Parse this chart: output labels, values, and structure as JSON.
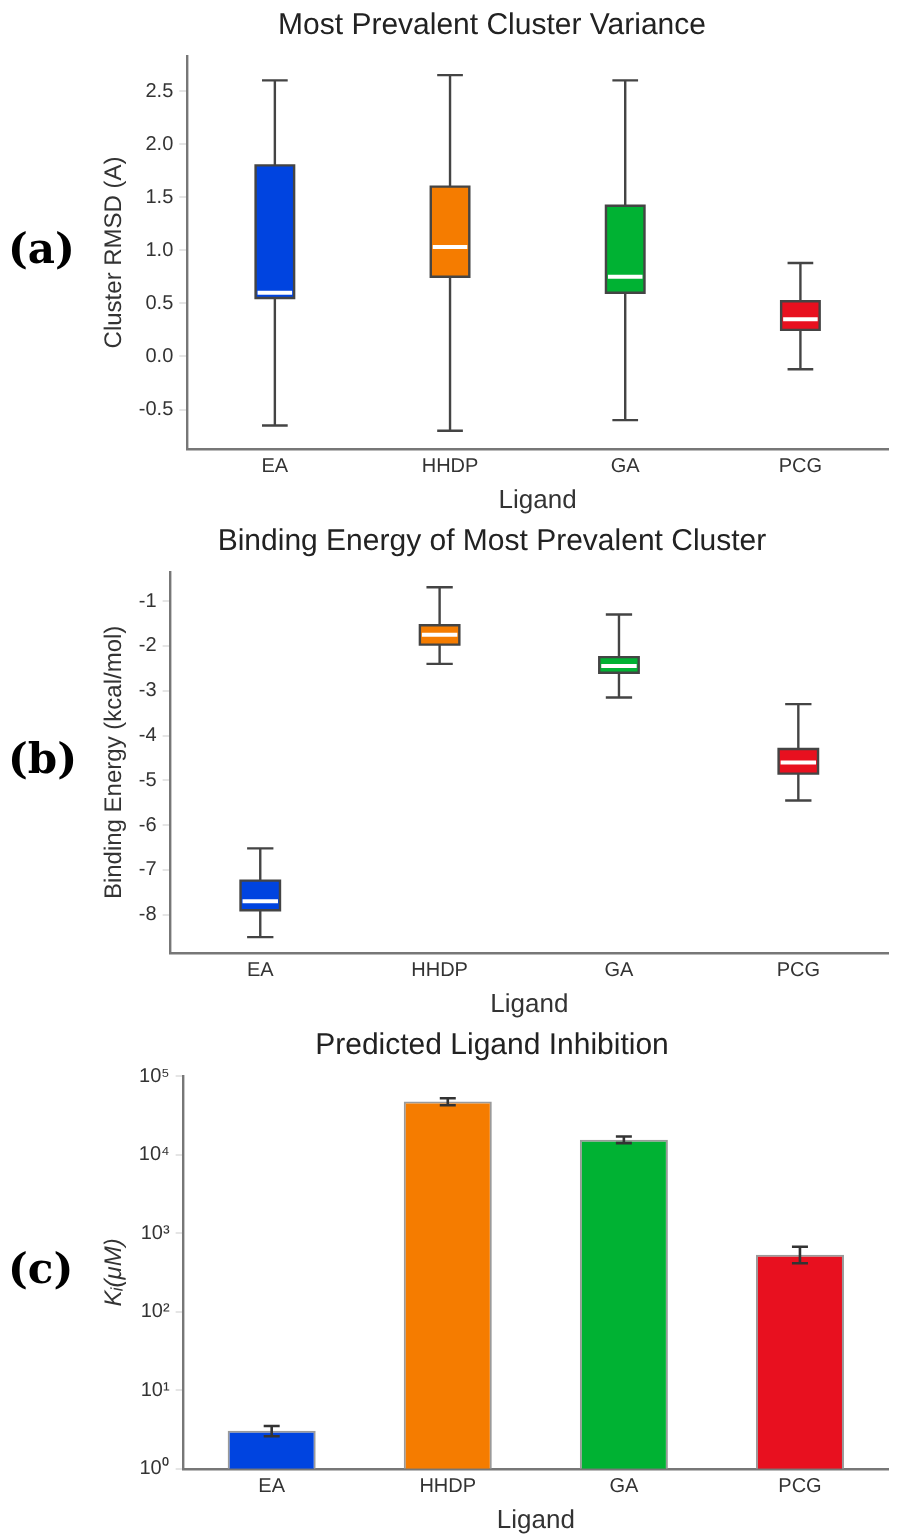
{
  "chart_data": [
    {
      "type": "box",
      "title": "Most Prevalent Cluster Variance",
      "xlabel": "Ligand",
      "ylabel": "Cluster RMSD (A)",
      "annotations": [
        "(a)"
      ],
      "categories": [
        "EA",
        "HHDP",
        "GA",
        "PCG"
      ],
      "colors": [
        "#0044e0",
        "#f57c00",
        "#00b233",
        "#e8101f"
      ],
      "boxes": [
        {
          "low": -0.65,
          "q1": 0.55,
          "median": 0.6,
          "q3": 1.8,
          "high": 2.6
        },
        {
          "low": -0.7,
          "q1": 0.75,
          "median": 1.03,
          "q3": 1.6,
          "high": 2.65
        },
        {
          "low": -0.6,
          "q1": 0.6,
          "median": 0.75,
          "q3": 1.42,
          "high": 2.6
        },
        {
          "low": -0.12,
          "q1": 0.25,
          "median": 0.35,
          "q3": 0.52,
          "high": 0.88
        }
      ],
      "ylim": [
        -0.87,
        2.83
      ],
      "yticks": [
        {
          "value": -0.5,
          "label": "-0.5"
        },
        {
          "value": 0,
          "label": "0.0"
        },
        {
          "value": 0.5,
          "label": "0.5"
        },
        {
          "value": 1,
          "label": "1.0"
        },
        {
          "value": 1.5,
          "label": "1.5"
        },
        {
          "value": 2,
          "label": "2.0"
        },
        {
          "value": 2.5,
          "label": "2.5"
        }
      ],
      "grid": false,
      "legend": false
    },
    {
      "type": "box",
      "title": "Binding Energy of Most Prevalent Cluster",
      "xlabel": "Ligand",
      "ylabel": "Binding Energy (kcal/mol)",
      "annotations": [
        "(b)"
      ],
      "categories": [
        "EA",
        "HHDP",
        "GA",
        "PCG"
      ],
      "colors": [
        "#0044e0",
        "#f57c00",
        "#00b233",
        "#e8101f"
      ],
      "boxes": [
        {
          "low": -8.5,
          "q1": -7.9,
          "median": -7.7,
          "q3": -7.24,
          "high": -6.52
        },
        {
          "low": -2.4,
          "q1": -1.97,
          "median": -1.75,
          "q3": -1.54,
          "high": -0.69
        },
        {
          "low": -3.15,
          "q1": -2.6,
          "median": -2.45,
          "q3": -2.25,
          "high": -1.3
        },
        {
          "low": -5.45,
          "q1": -4.85,
          "median": -4.6,
          "q3": -4.3,
          "high": -3.3
        }
      ],
      "ylim": [
        -8.85,
        -0.35
      ],
      "yticks": [
        -8,
        -7,
        -6,
        -5,
        -4,
        -3,
        -2,
        -1
      ],
      "grid": false,
      "legend": false
    },
    {
      "type": "bar",
      "title": "Predicted Ligand Inhibition",
      "xlabel": "Ligand",
      "ylabel": "Kᵢ(μM)",
      "annotations": [
        "(c)"
      ],
      "categories": [
        "EA",
        "HHDP",
        "GA",
        "PCG"
      ],
      "colors": [
        "#0044e0",
        "#f57c00",
        "#00b233",
        "#e8101f"
      ],
      "values": [
        3.05,
        47200,
        15450,
        532
      ],
      "errors": [
        [
          2.6,
          3.5
        ],
        [
          42500,
          52000
        ],
        [
          14000,
          17000
        ],
        [
          414,
          670
        ]
      ],
      "log": true,
      "ylim": [
        1,
        100000
      ],
      "yticks": [
        {
          "value": 1,
          "label": "10⁰"
        },
        {
          "value": 10,
          "label": "10¹"
        },
        {
          "value": 100,
          "label": "10²"
        },
        {
          "value": 1000,
          "label": "10³"
        },
        {
          "value": 10000,
          "label": "10⁴"
        },
        {
          "value": 100000,
          "label": "10⁵"
        }
      ],
      "grid": false,
      "legend": false
    }
  ]
}
